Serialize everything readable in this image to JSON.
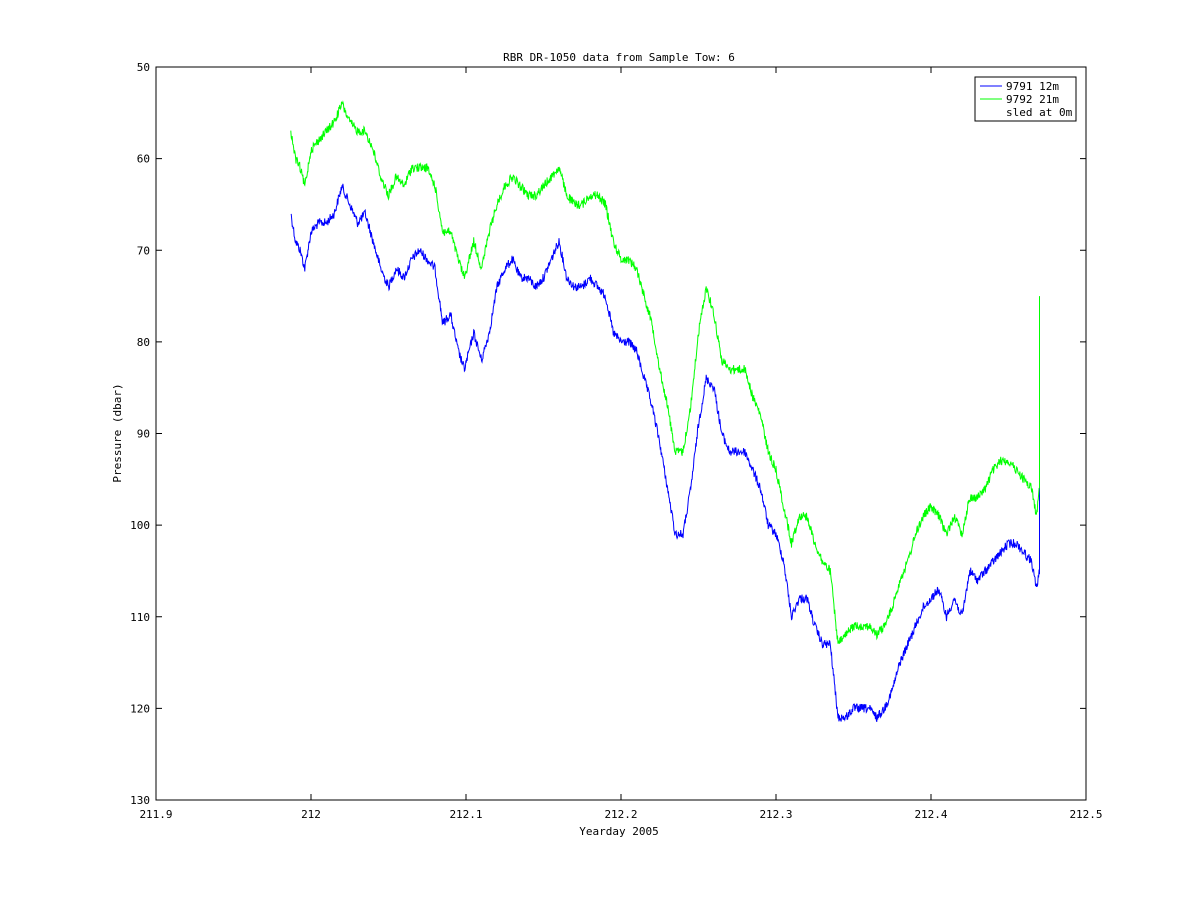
{
  "chart_data": {
    "type": "line",
    "title": "RBR DR-1050 data from Sample Tow: 6",
    "xlabel": "Yearday 2005",
    "ylabel": "Pressure (dbar)",
    "xlim": [
      211.9,
      212.5
    ],
    "ylim": [
      50,
      130
    ],
    "y_reversed": true,
    "xticks": [
      211.9,
      212,
      212.1,
      212.2,
      212.3,
      212.4,
      212.5
    ],
    "xtick_labels": [
      "211.9",
      "212",
      "212.1",
      "212.2",
      "212.3",
      "212.4",
      "212.5"
    ],
    "yticks": [
      50,
      60,
      70,
      80,
      90,
      100,
      110,
      120,
      130
    ],
    "ytick_labels": [
      "50",
      "60",
      "70",
      "80",
      "90",
      "100",
      "110",
      "120",
      "130"
    ],
    "grid": false,
    "legend_position": "top-right",
    "series": [
      {
        "name": "9791 12m",
        "color": "#0000ff",
        "x": [
          211.987,
          211.99,
          211.993,
          211.996,
          212.0,
          212.005,
          212.01,
          212.015,
          212.02,
          212.025,
          212.03,
          212.035,
          212.04,
          212.045,
          212.05,
          212.055,
          212.06,
          212.065,
          212.07,
          212.075,
          212.08,
          212.085,
          212.09,
          212.095,
          212.099,
          212.105,
          212.11,
          212.115,
          212.12,
          212.125,
          212.13,
          212.135,
          212.14,
          212.145,
          212.15,
          212.155,
          212.16,
          212.165,
          212.17,
          212.175,
          212.18,
          212.185,
          212.19,
          212.195,
          212.2,
          212.205,
          212.21,
          212.215,
          212.22,
          212.225,
          212.23,
          212.235,
          212.24,
          212.245,
          212.25,
          212.255,
          212.26,
          212.265,
          212.27,
          212.275,
          212.28,
          212.285,
          212.29,
          212.295,
          212.3,
          212.305,
          212.31,
          212.315,
          212.32,
          212.325,
          212.33,
          212.335,
          212.34,
          212.345,
          212.35,
          212.355,
          212.36,
          212.365,
          212.37,
          212.375,
          212.38,
          212.385,
          212.39,
          212.395,
          212.4,
          212.405,
          212.41,
          212.415,
          212.42,
          212.425,
          212.43,
          212.435,
          212.44,
          212.445,
          212.45,
          212.455,
          212.46,
          212.465,
          212.468,
          212.47,
          212.47,
          212.47
        ],
        "y": [
          66,
          69,
          70,
          72,
          68,
          67,
          67,
          66,
          63,
          65,
          67,
          66,
          69,
          72,
          74,
          72,
          73,
          71,
          70,
          71,
          72,
          78,
          77,
          81,
          83,
          79,
          82,
          79,
          74,
          72,
          71,
          73,
          73,
          74,
          73,
          71,
          69,
          73,
          74,
          74,
          73,
          74,
          75,
          79,
          80,
          80,
          81,
          84,
          87,
          91,
          96,
          101,
          101,
          96,
          89,
          84,
          85,
          90,
          92,
          92,
          92,
          94,
          96,
          100,
          101,
          104,
          110,
          108,
          108,
          111,
          113,
          113,
          121,
          121,
          120,
          120,
          120,
          121,
          120,
          118,
          115,
          113,
          111,
          109,
          108,
          107,
          110,
          108,
          110,
          105,
          106,
          105,
          104,
          103,
          102,
          102,
          103,
          104,
          107,
          105,
          90,
          85
        ]
      },
      {
        "name": "9792 21m",
        "color": "#00ff00",
        "x": [
          211.987,
          211.99,
          211.993,
          211.996,
          212.0,
          212.005,
          212.01,
          212.015,
          212.02,
          212.025,
          212.03,
          212.035,
          212.04,
          212.045,
          212.05,
          212.055,
          212.06,
          212.065,
          212.07,
          212.075,
          212.08,
          212.085,
          212.09,
          212.095,
          212.099,
          212.105,
          212.11,
          212.115,
          212.12,
          212.125,
          212.13,
          212.135,
          212.14,
          212.145,
          212.15,
          212.155,
          212.16,
          212.165,
          212.17,
          212.175,
          212.18,
          212.185,
          212.19,
          212.195,
          212.2,
          212.205,
          212.21,
          212.215,
          212.22,
          212.225,
          212.23,
          212.235,
          212.24,
          212.245,
          212.25,
          212.255,
          212.26,
          212.265,
          212.27,
          212.275,
          212.28,
          212.285,
          212.29,
          212.295,
          212.3,
          212.305,
          212.31,
          212.315,
          212.32,
          212.325,
          212.33,
          212.335,
          212.34,
          212.345,
          212.35,
          212.355,
          212.36,
          212.365,
          212.37,
          212.375,
          212.38,
          212.385,
          212.39,
          212.395,
          212.4,
          212.405,
          212.41,
          212.415,
          212.42,
          212.425,
          212.43,
          212.435,
          212.44,
          212.445,
          212.45,
          212.455,
          212.46,
          212.465,
          212.468,
          212.47,
          212.47,
          212.47
        ],
        "y": [
          57,
          60,
          61,
          63,
          59,
          58,
          57,
          56,
          54,
          56,
          57,
          57,
          59,
          62,
          64,
          62,
          63,
          61,
          61,
          61,
          63,
          68,
          68,
          71,
          73,
          69,
          72,
          68,
          65,
          63,
          62,
          63,
          64,
          64,
          63,
          62,
          61,
          64,
          65,
          65,
          64,
          64,
          65,
          69,
          71,
          71,
          72,
          75,
          78,
          83,
          87,
          92,
          92,
          87,
          79,
          74,
          77,
          82,
          83,
          83,
          83,
          86,
          88,
          92,
          94,
          98,
          102,
          99,
          99,
          102,
          104,
          105,
          113,
          112,
          111,
          111,
          111,
          112,
          111,
          109,
          106,
          104,
          101,
          99,
          98,
          99,
          101,
          99,
          101,
          97,
          97,
          96,
          94,
          93,
          93,
          94,
          95,
          96,
          99,
          96,
          80,
          75
        ]
      },
      {
        "name": "sled at 0m",
        "color": "#ff0000",
        "x": [],
        "y": []
      }
    ]
  }
}
